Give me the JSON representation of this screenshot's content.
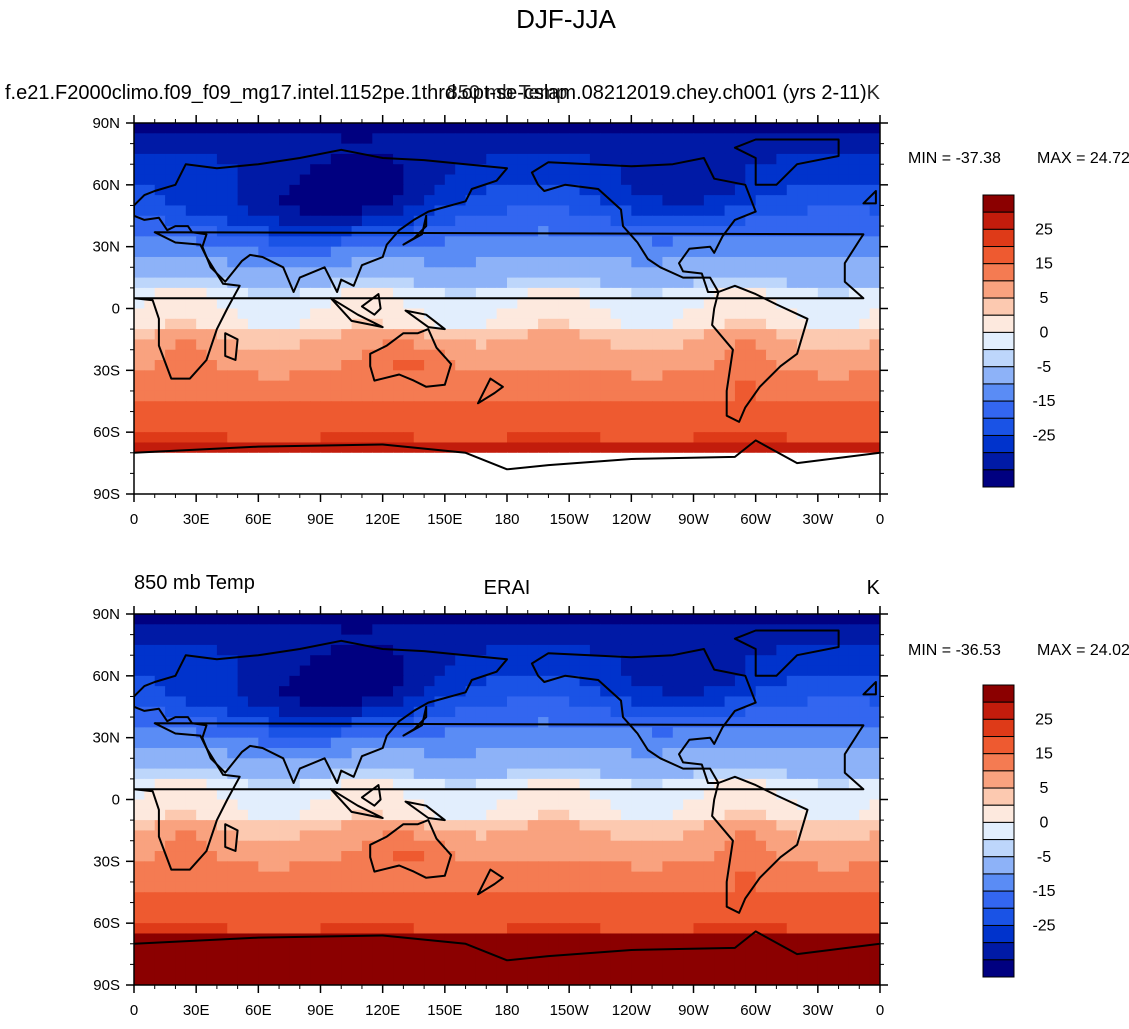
{
  "figure": {
    "title": "DJF-JJA"
  },
  "colors": {
    "ocean_fill": "#ffffff",
    "missing": "#ffffff",
    "coast": "#000000",
    "levels": [
      "#000080",
      "#001aa6",
      "#0033cc",
      "#1a53e6",
      "#3366f0",
      "#5a8cf5",
      "#8db2f8",
      "#bdd6fb",
      "#e2eefd",
      "#fde9de",
      "#fcc9b0",
      "#f9a27f",
      "#f47b52",
      "#ee5a30",
      "#de3a18",
      "#c21c0c",
      "#8b0000"
    ]
  },
  "chart_data": [
    {
      "type": "heatmap",
      "field": "850 mb temperature difference, DJF minus JJA",
      "left_title": "f.e21.F2000climo.f09_f09_mg17.intel.1152pe.1thrd.opt-se-cslam.08212019.chey.ch001 (yrs 2-11)",
      "center_title": "850 mb Temp",
      "right_title": "K",
      "min": -37.38,
      "max": 24.72,
      "min_label": "MIN = -37.38",
      "max_label": "MAX =  24.72",
      "xlim": [
        0,
        360
      ],
      "ylim": [
        -90,
        90
      ],
      "xticks": [
        "0",
        "30E",
        "60E",
        "90E",
        "120E",
        "150E",
        "180",
        "150W",
        "120W",
        "90W",
        "60W",
        "30W",
        "0"
      ],
      "yticks": [
        "90N",
        "60N",
        "30N",
        "0",
        "30S",
        "60S",
        "90S"
      ],
      "colorbar": {
        "levels": [
          -35,
          -30,
          -25,
          -20,
          -15,
          -10,
          -5,
          -2.5,
          0,
          2.5,
          5,
          10,
          15,
          20,
          25,
          30
        ],
        "labels": [
          "25",
          "15",
          "5",
          "0",
          "-5",
          "-15",
          "-25"
        ],
        "units": "K"
      }
    },
    {
      "type": "heatmap",
      "field": "850 mb temperature difference, DJF minus JJA",
      "left_title": "850 mb Temp",
      "center_title": "ERAI",
      "right_title": "K",
      "min": -36.53,
      "max": 24.02,
      "min_label": "MIN = -36.53",
      "max_label": "MAX =  24.02",
      "xlim": [
        0,
        360
      ],
      "ylim": [
        -90,
        90
      ],
      "xticks": [
        "0",
        "30E",
        "60E",
        "90E",
        "120E",
        "150E",
        "180",
        "150W",
        "120W",
        "90W",
        "60W",
        "30W",
        "0"
      ],
      "yticks": [
        "90N",
        "60N",
        "30N",
        "0",
        "30S",
        "60S",
        "90S"
      ],
      "colorbar": {
        "levels": [
          -35,
          -30,
          -25,
          -20,
          -15,
          -10,
          -5,
          -2.5,
          0,
          2.5,
          5,
          10,
          15,
          20,
          25,
          30
        ],
        "labels": [
          "25",
          "15",
          "5",
          "0",
          "-5",
          "-15",
          "-25"
        ],
        "units": "K"
      }
    }
  ]
}
